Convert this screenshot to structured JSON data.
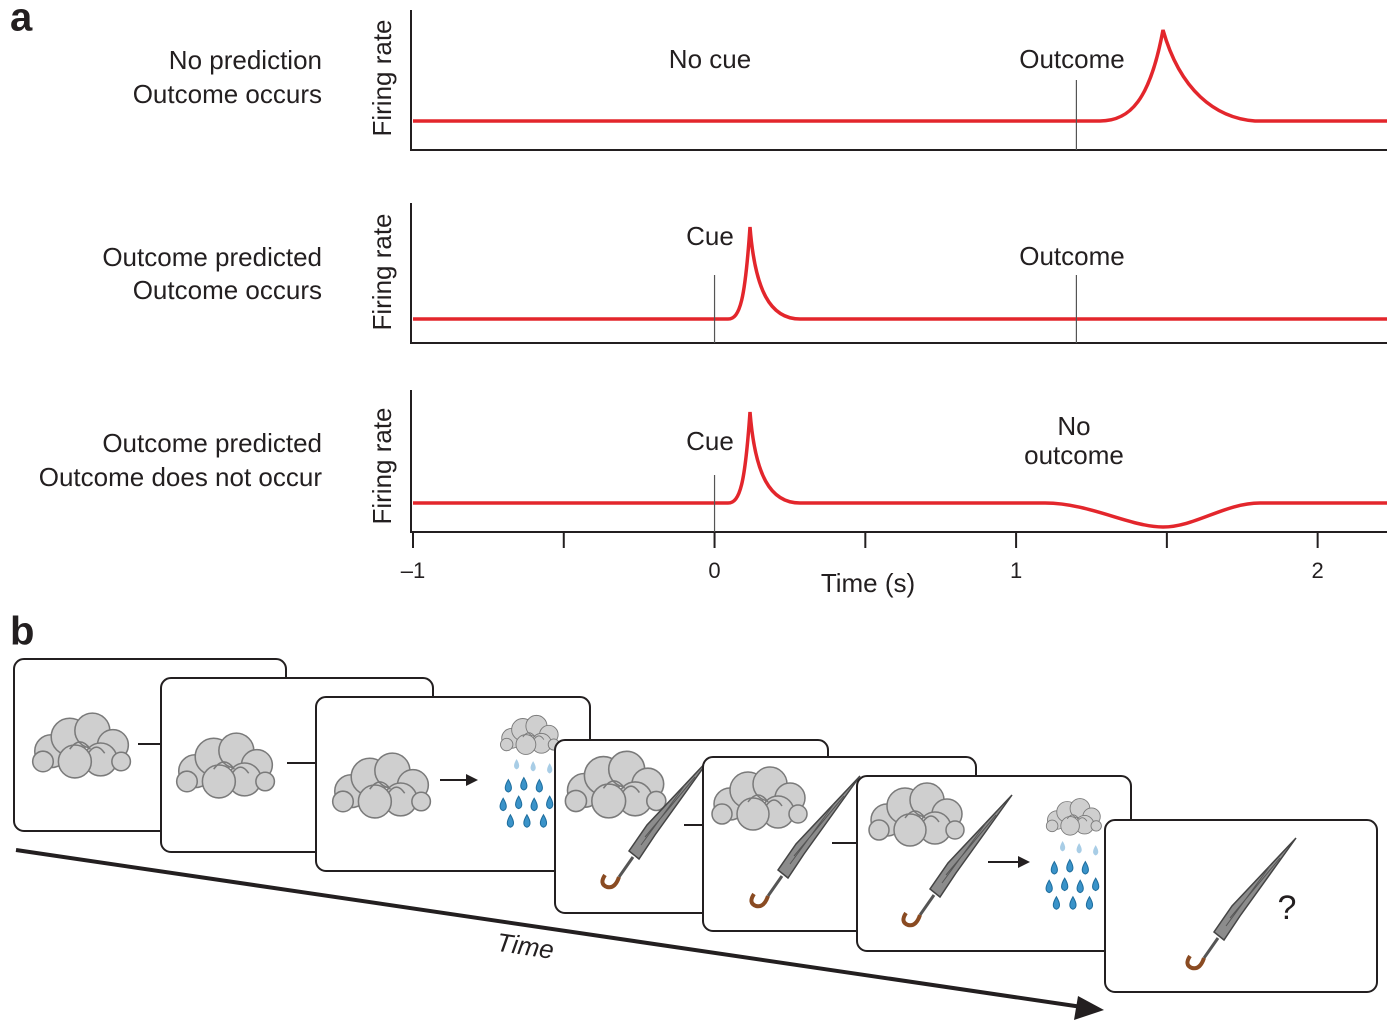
{
  "panel_a": {
    "label": "a",
    "x_label": "Time (s)",
    "xlim": [
      -1,
      2.23
    ],
    "xticks": [
      {
        "value": -1,
        "label": "–1"
      },
      0,
      1,
      2
    ],
    "minor_xticks": [
      -0.5,
      0.5,
      1.5
    ],
    "rows": [
      {
        "condition": [
          "No prediction",
          "Outcome occurs"
        ],
        "y_label": "Firing rate",
        "annotations": [
          "No cue",
          "Outcome"
        ],
        "event_lines": [
          1.2
        ]
      },
      {
        "condition": [
          "Outcome predicted",
          "Outcome occurs"
        ],
        "y_label": "Firing rate",
        "annotations": [
          "Cue",
          "Outcome"
        ],
        "event_lines": [
          0,
          1.2
        ]
      },
      {
        "condition": [
          "Outcome predicted",
          "Outcome does not occur"
        ],
        "y_label": "Firing rate",
        "annotations": [
          "Cue",
          "No",
          "outcome"
        ],
        "event_lines": [
          0
        ]
      }
    ]
  },
  "panel_b": {
    "label": "b",
    "axis_label": "Time",
    "query": "?"
  }
}
